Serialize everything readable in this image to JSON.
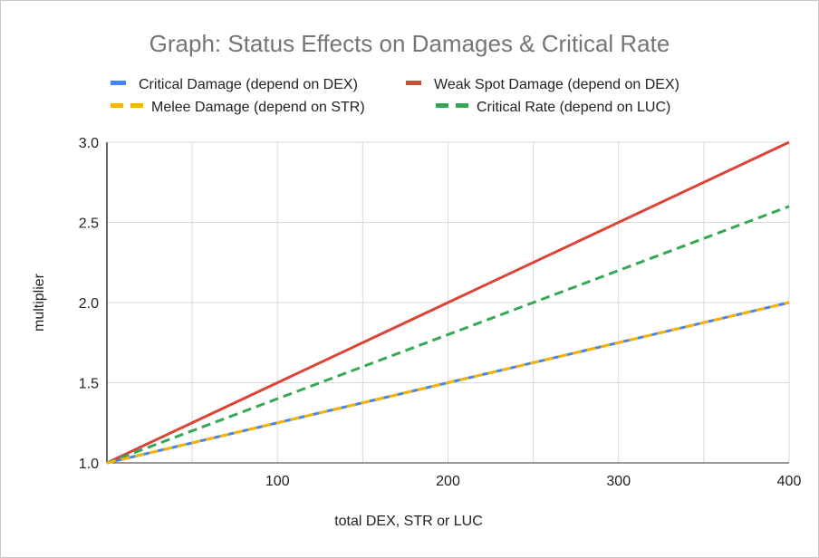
{
  "chart_data": {
    "type": "line",
    "title": "Graph: Status Effects on Damages & Critical Rate",
    "xlabel": "total DEX, STR or LUC",
    "ylabel": "multiplier",
    "xlim": [
      0,
      400
    ],
    "ylim": [
      1.0,
      3.0
    ],
    "x_ticks": [
      100,
      200,
      300,
      400
    ],
    "x_tick_labels": [
      "100",
      "200",
      "300",
      "400"
    ],
    "y_ticks": [
      1.0,
      1.5,
      2.0,
      2.5,
      3.0
    ],
    "y_tick_labels": [
      "1.0",
      "1.5",
      "2.0",
      "2.5",
      "3.0"
    ],
    "grid": true,
    "legend_position": "top",
    "series": [
      {
        "name": "Critical Damage (depend on DEX)",
        "color": "#4285f4",
        "dashed": false,
        "x": [
          0,
          400
        ],
        "y": [
          1.0,
          2.0
        ]
      },
      {
        "name": "Weak Spot Damage (depend on DEX)",
        "color": "#db4437",
        "dashed": false,
        "x": [
          0,
          400
        ],
        "y": [
          1.0,
          3.0
        ]
      },
      {
        "name": "Melee Damage (depend on STR)",
        "color": "#f4b400",
        "dashed": true,
        "x": [
          0,
          400
        ],
        "y": [
          1.0,
          2.0
        ]
      },
      {
        "name": "Critical Rate (depend on LUC)",
        "color": "#34a853",
        "dashed": true,
        "x": [
          0,
          400
        ],
        "y": [
          1.0,
          2.6
        ]
      }
    ]
  }
}
